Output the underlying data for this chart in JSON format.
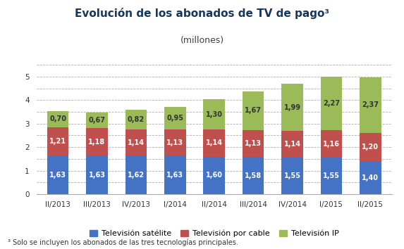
{
  "title": "Evolución de los abonados de TV de pago³",
  "subtitle": "(millones)",
  "footnote": "³ Solo se incluyen los abonados de las tres tecnologías principales.",
  "categories": [
    "II/2013",
    "III/2013",
    "IV/2013",
    "I/2014",
    "II/2014",
    "III/2014",
    "IV/2014",
    "I/2015",
    "II/2015"
  ],
  "satelite": [
    1.63,
    1.63,
    1.62,
    1.63,
    1.6,
    1.58,
    1.55,
    1.55,
    1.4
  ],
  "cable": [
    1.21,
    1.18,
    1.14,
    1.13,
    1.14,
    1.13,
    1.14,
    1.16,
    1.2
  ],
  "ip": [
    0.7,
    0.67,
    0.82,
    0.95,
    1.3,
    1.67,
    1.99,
    2.27,
    2.37
  ],
  "color_satelite": "#4472c4",
  "color_cable": "#c0504d",
  "color_ip": "#9bbb59",
  "legend_labels": [
    "Televisión satélite",
    "Televisión por cable",
    "Televisión IP"
  ],
  "ylim": [
    0,
    5.5
  ],
  "yticks": [
    0,
    1,
    2,
    3,
    4,
    5
  ],
  "yticks_minor": [
    0.5,
    1.5,
    2.5,
    3.5,
    4.5,
    5.5
  ],
  "title_fontsize": 11,
  "subtitle_fontsize": 9,
  "tick_fontsize": 7.5,
  "label_fontsize": 7,
  "legend_fontsize": 8,
  "footnote_fontsize": 7,
  "title_color": "#17375e",
  "subtitle_color": "#404040",
  "background_color": "#ffffff",
  "grid_color": "#b0b0b0"
}
